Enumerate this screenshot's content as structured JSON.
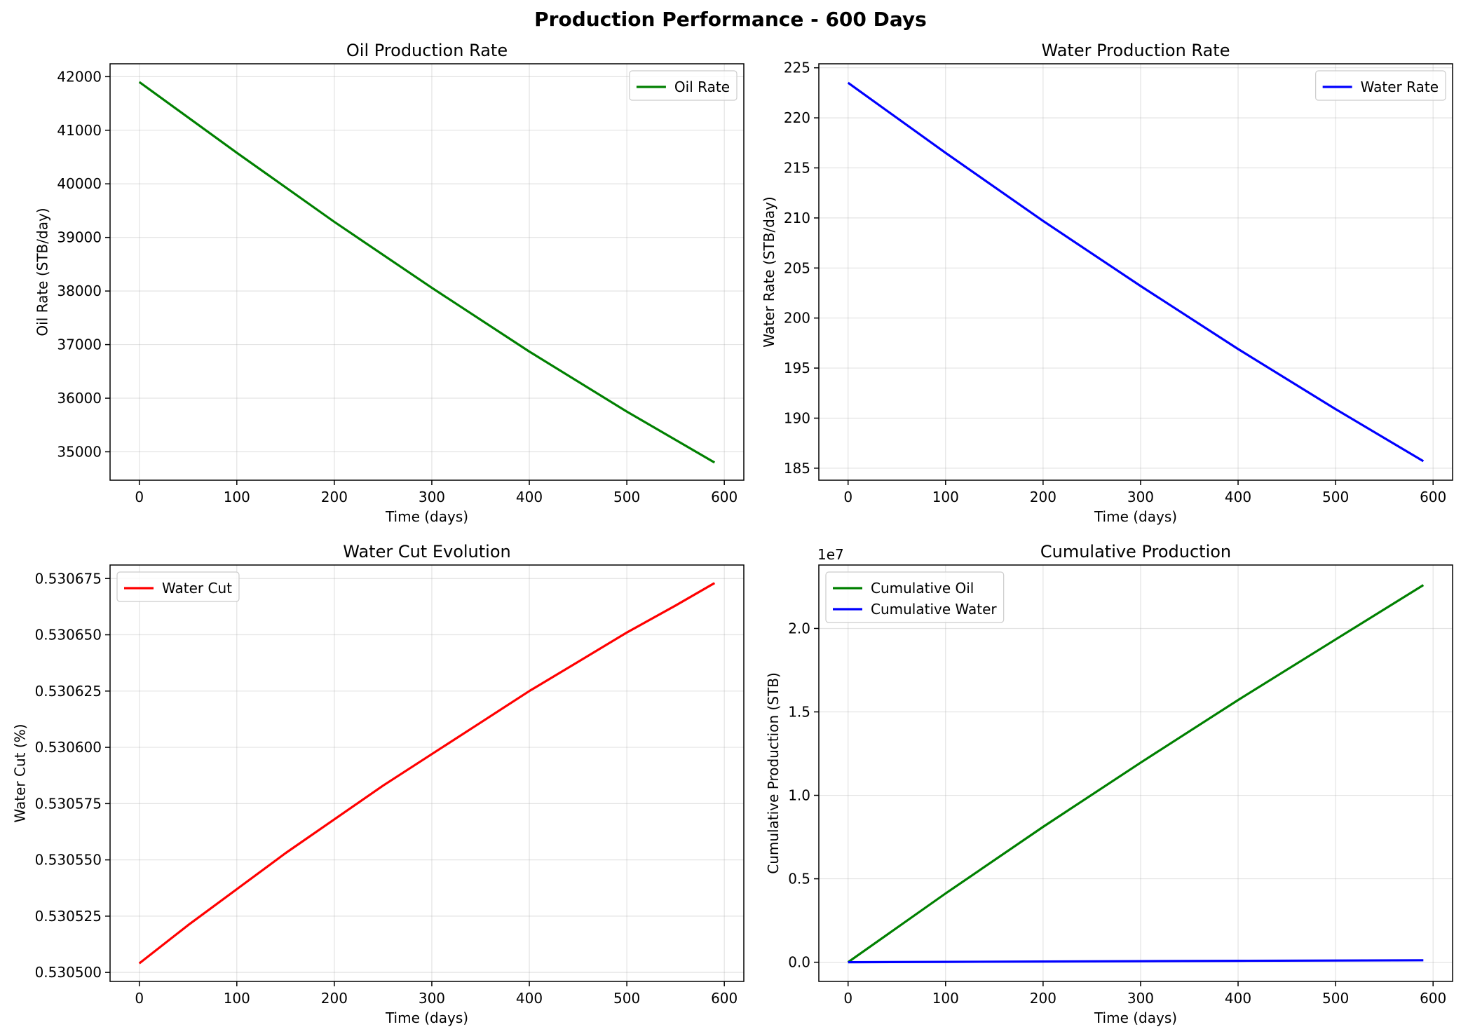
{
  "suptitle": "Production Performance - 600 Days",
  "chart_data": [
    {
      "type": "line",
      "title": "Oil Production Rate",
      "xlabel": "Time (days)",
      "ylabel": "Oil Rate (STB/day)",
      "xlim": [
        -30,
        620
      ],
      "ylim": [
        34470,
        42240
      ],
      "xticks": [
        0,
        100,
        200,
        300,
        400,
        500,
        600
      ],
      "yticks": [
        35000,
        36000,
        37000,
        38000,
        39000,
        40000,
        41000,
        42000
      ],
      "ytick_labels": [
        "35000",
        "36000",
        "37000",
        "38000",
        "39000",
        "40000",
        "41000",
        "42000"
      ],
      "grid": true,
      "legend": "upper right",
      "series": [
        {
          "name": "Oil Rate",
          "color": "#008000",
          "x": [
            0,
            100,
            200,
            300,
            400,
            500,
            590
          ],
          "y": [
            41900,
            40580,
            39290,
            38060,
            36870,
            35750,
            34800
          ]
        }
      ]
    },
    {
      "type": "line",
      "title": "Water Production Rate",
      "xlabel": "Time (days)",
      "ylabel": "Water Rate (STB/day)",
      "xlim": [
        -30,
        620
      ],
      "ylim": [
        183.8,
        225.4
      ],
      "xticks": [
        0,
        100,
        200,
        300,
        400,
        500,
        600
      ],
      "yticks": [
        185,
        190,
        195,
        200,
        205,
        210,
        215,
        220,
        225
      ],
      "ytick_labels": [
        "185",
        "190",
        "195",
        "200",
        "205",
        "210",
        "215",
        "220",
        "225"
      ],
      "grid": true,
      "legend": "upper right",
      "series": [
        {
          "name": "Water Rate",
          "color": "#0000ff",
          "x": [
            0,
            100,
            200,
            300,
            400,
            500,
            590
          ],
          "y": [
            223.5,
            216.5,
            209.7,
            203.2,
            196.9,
            190.9,
            185.7
          ]
        }
      ]
    },
    {
      "type": "line",
      "title": "Water Cut Evolution",
      "xlabel": "Time (days)",
      "ylabel": "Water Cut (%)",
      "xlim": [
        -30,
        620
      ],
      "ylim": [
        0.530496,
        0.530681
      ],
      "xticks": [
        0,
        100,
        200,
        300,
        400,
        500,
        600
      ],
      "yticks": [
        0.5305,
        0.530525,
        0.53055,
        0.530575,
        0.5306,
        0.530625,
        0.53065,
        0.530675
      ],
      "ytick_labels": [
        "0.530500",
        "0.530525",
        "0.530550",
        "0.530575",
        "0.530600",
        "0.530625",
        "0.530650",
        "0.530675"
      ],
      "grid": true,
      "legend": "upper left",
      "series": [
        {
          "name": "Water Cut",
          "color": "#ff0000",
          "x": [
            0,
            50,
            100,
            150,
            200,
            250,
            300,
            350,
            400,
            450,
            500,
            550,
            590
          ],
          "y": [
            0.530504,
            0.530521,
            0.530537,
            0.530553,
            0.530568,
            0.530583,
            0.530597,
            0.530611,
            0.530625,
            0.530638,
            0.530651,
            0.530663,
            0.530673
          ]
        }
      ]
    },
    {
      "type": "line",
      "title": "Cumulative Production",
      "xlabel": "Time (days)",
      "ylabel": "Cumulative Production (STB)",
      "xlim": [
        -30,
        620
      ],
      "ylim": [
        -1150000,
        23800000
      ],
      "offset_label": "1e7",
      "xticks": [
        0,
        100,
        200,
        300,
        400,
        500,
        600
      ],
      "yticks": [
        0,
        5000000,
        10000000,
        15000000,
        20000000
      ],
      "ytick_labels": [
        "0.0",
        "0.5",
        "1.0",
        "1.5",
        "2.0"
      ],
      "grid": true,
      "legend": "upper left",
      "series": [
        {
          "name": "Cumulative Oil",
          "color": "#008000",
          "x": [
            0,
            100,
            200,
            300,
            400,
            500,
            590
          ],
          "y": [
            0,
            4120000,
            8110000,
            11960000,
            15710000,
            19340000,
            22600000
          ]
        },
        {
          "name": "Cumulative Water",
          "color": "#0000ff",
          "x": [
            0,
            100,
            200,
            300,
            400,
            500,
            590
          ],
          "y": [
            0,
            22000,
            43500,
            64100,
            84000,
            103000,
            120000
          ]
        }
      ]
    }
  ]
}
